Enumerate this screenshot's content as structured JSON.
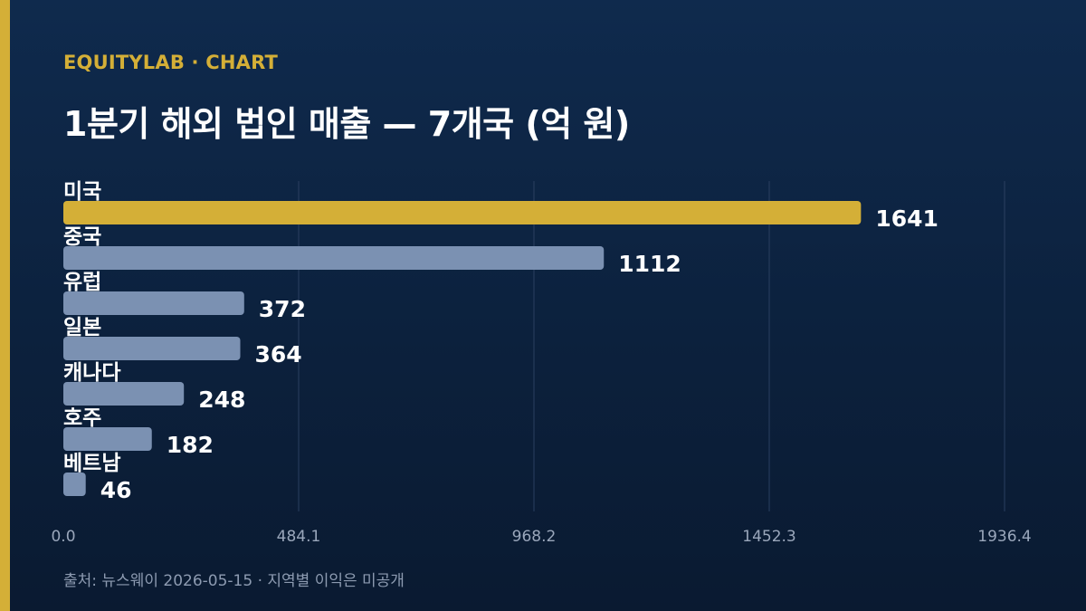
{
  "header": {
    "eyebrow": "EQUITYLAB · CHART",
    "title": "1분기 해외 법인 매출 — 7개국 (억 원)"
  },
  "footer": {
    "source": "출처: 뉴스웨이 2026-05-15 · 지역별 이익은 미공개"
  },
  "colors": {
    "accent": "#d4af37",
    "bar": "#7b91b2",
    "grid": "#2a3f60",
    "tick": "#9aa7bb",
    "text": "#ffffff"
  },
  "chart_data": {
    "type": "bar",
    "orientation": "horizontal",
    "categories": [
      "미국",
      "중국",
      "유럽",
      "일본",
      "캐나다",
      "호주",
      "베트남"
    ],
    "values": [
      1641,
      1112,
      372,
      364,
      248,
      182,
      46
    ],
    "highlight_index": 0,
    "xlim": [
      0,
      1936.4
    ],
    "xticks": [
      "0.0",
      "484.1",
      "968.2",
      "1452.3",
      "1936.4"
    ],
    "grid": true,
    "legend": "none"
  }
}
